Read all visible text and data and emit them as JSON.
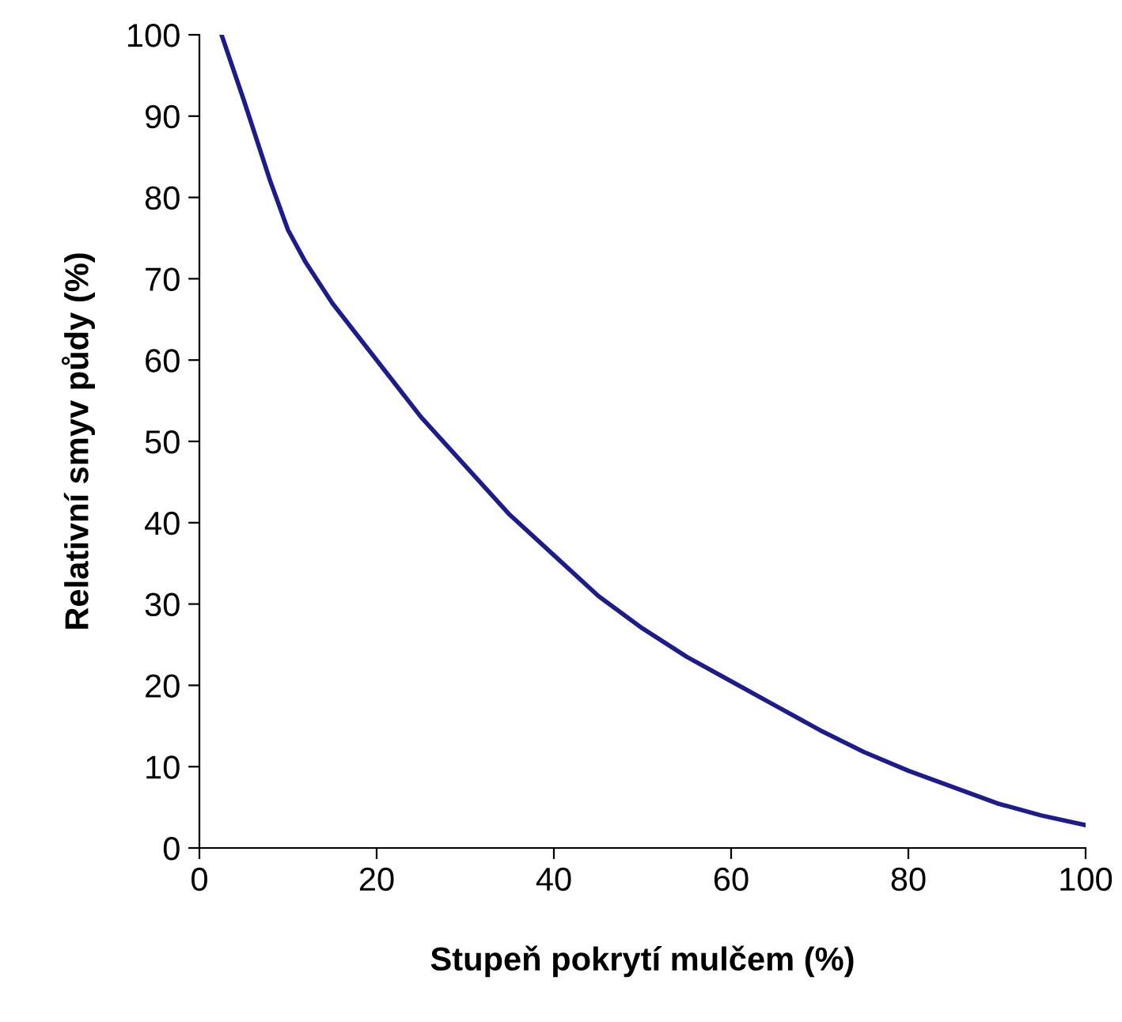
{
  "chart_data": {
    "type": "line",
    "xlabel": "Stupeň pokrytí mulčem (%)",
    "ylabel": "Relativní smyv půdy (%)",
    "series": [
      {
        "color": "#1c1c8c",
        "x": [
          2.5,
          5,
          8,
          10,
          12,
          15,
          20,
          25,
          30,
          35,
          40,
          45,
          50,
          55,
          60,
          65,
          70,
          75,
          80,
          85,
          90,
          95,
          100
        ],
        "values": [
          100,
          92,
          82,
          76,
          72,
          67,
          60,
          53,
          47,
          41,
          36,
          31,
          27,
          23.5,
          20.5,
          17.5,
          14.5,
          11.8,
          9.5,
          7.5,
          5.5,
          4,
          2.8
        ]
      }
    ],
    "xlim": [
      0,
      100
    ],
    "ylim": [
      0,
      100
    ],
    "xticks": [
      0,
      20,
      40,
      60,
      80,
      100
    ],
    "yticks": [
      0,
      10,
      20,
      30,
      40,
      50,
      60,
      70,
      80,
      90,
      100
    ],
    "grid": false,
    "legend": false,
    "marker": "none",
    "line_style": "solid"
  }
}
